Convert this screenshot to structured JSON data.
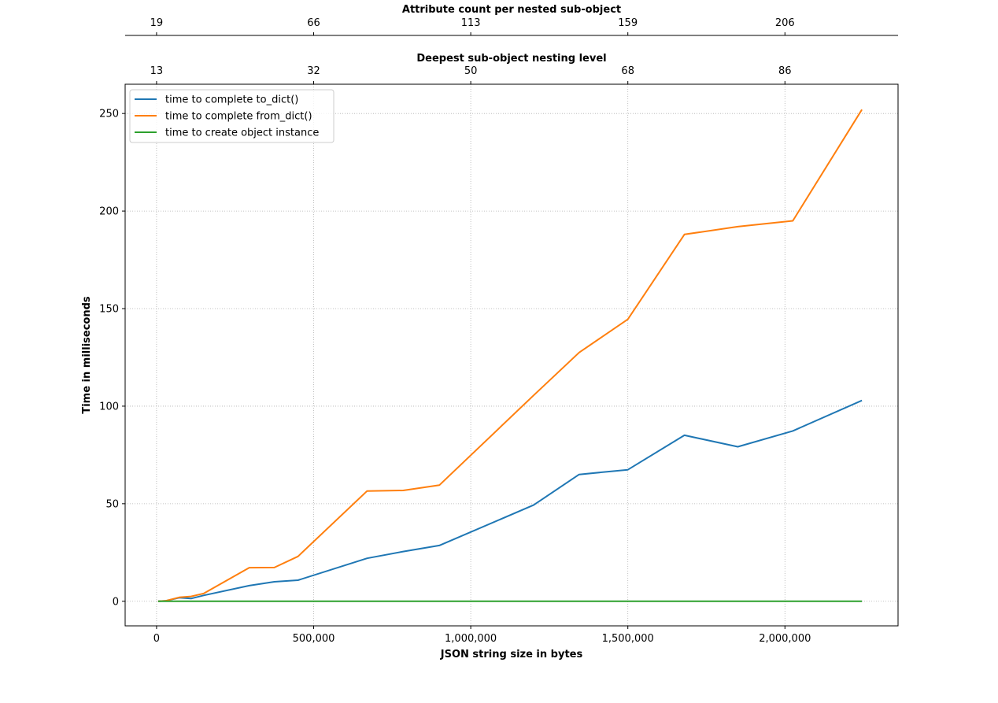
{
  "chart_data": {
    "type": "line",
    "xlabel": "JSON string size in bytes",
    "ylabel": "Time in milliseconds",
    "xlim": [
      -100000,
      2360000
    ],
    "ylim": [
      -12.6,
      265
    ],
    "x_ticks": [
      0,
      500000,
      1000000,
      1500000,
      2000000
    ],
    "x_tick_labels": [
      "0",
      "500,000",
      "1,000,000",
      "1,500,000",
      "2,000,000"
    ],
    "y_ticks": [
      0,
      50,
      100,
      150,
      200,
      250
    ],
    "y_tick_labels": [
      "0",
      "50",
      "100",
      "150",
      "200",
      "250"
    ],
    "grid": true,
    "legend_position": "top-left",
    "top_axes": [
      {
        "label": "Deepest sub-object nesting level",
        "tick_labels": [
          "13",
          "32",
          "50",
          "68",
          "86"
        ]
      },
      {
        "label": "Attribute count per nested sub-object",
        "tick_labels": [
          "19",
          "66",
          "113",
          "159",
          "206"
        ]
      }
    ],
    "x": [
      5000,
      28000,
      72000,
      110000,
      150000,
      295000,
      375000,
      450000,
      670000,
      785000,
      900000,
      1200000,
      1345000,
      1500000,
      1680000,
      1850000,
      2025000,
      2245000
    ],
    "series": [
      {
        "name": "time to complete to_dict()",
        "color": "#1f77b4",
        "values": [
          0.0,
          0.2,
          1.8,
          1.4,
          3.0,
          8.0,
          10.0,
          10.8,
          22.0,
          25.5,
          28.6,
          49.3,
          65.0,
          67.4,
          85.1,
          79.2,
          87.3,
          102.9
        ]
      },
      {
        "name": "time to complete from_dict()",
        "color": "#ff7f0e",
        "values": [
          0.0,
          0.2,
          2.0,
          2.5,
          4.0,
          17.2,
          17.3,
          23.0,
          56.5,
          56.8,
          59.5,
          105.5,
          127.5,
          144.5,
          188.0,
          192.0,
          195.0,
          252.0
        ]
      },
      {
        "name": "time to create object instance",
        "color": "#2ca02c",
        "values": [
          0.0,
          0.0,
          0.0,
          0.0,
          0.0,
          0.0,
          0.0,
          0.0,
          0.0,
          0.0,
          0.0,
          0.0,
          0.0,
          0.0,
          0.0,
          0.0,
          0.0,
          0.0
        ]
      }
    ]
  }
}
